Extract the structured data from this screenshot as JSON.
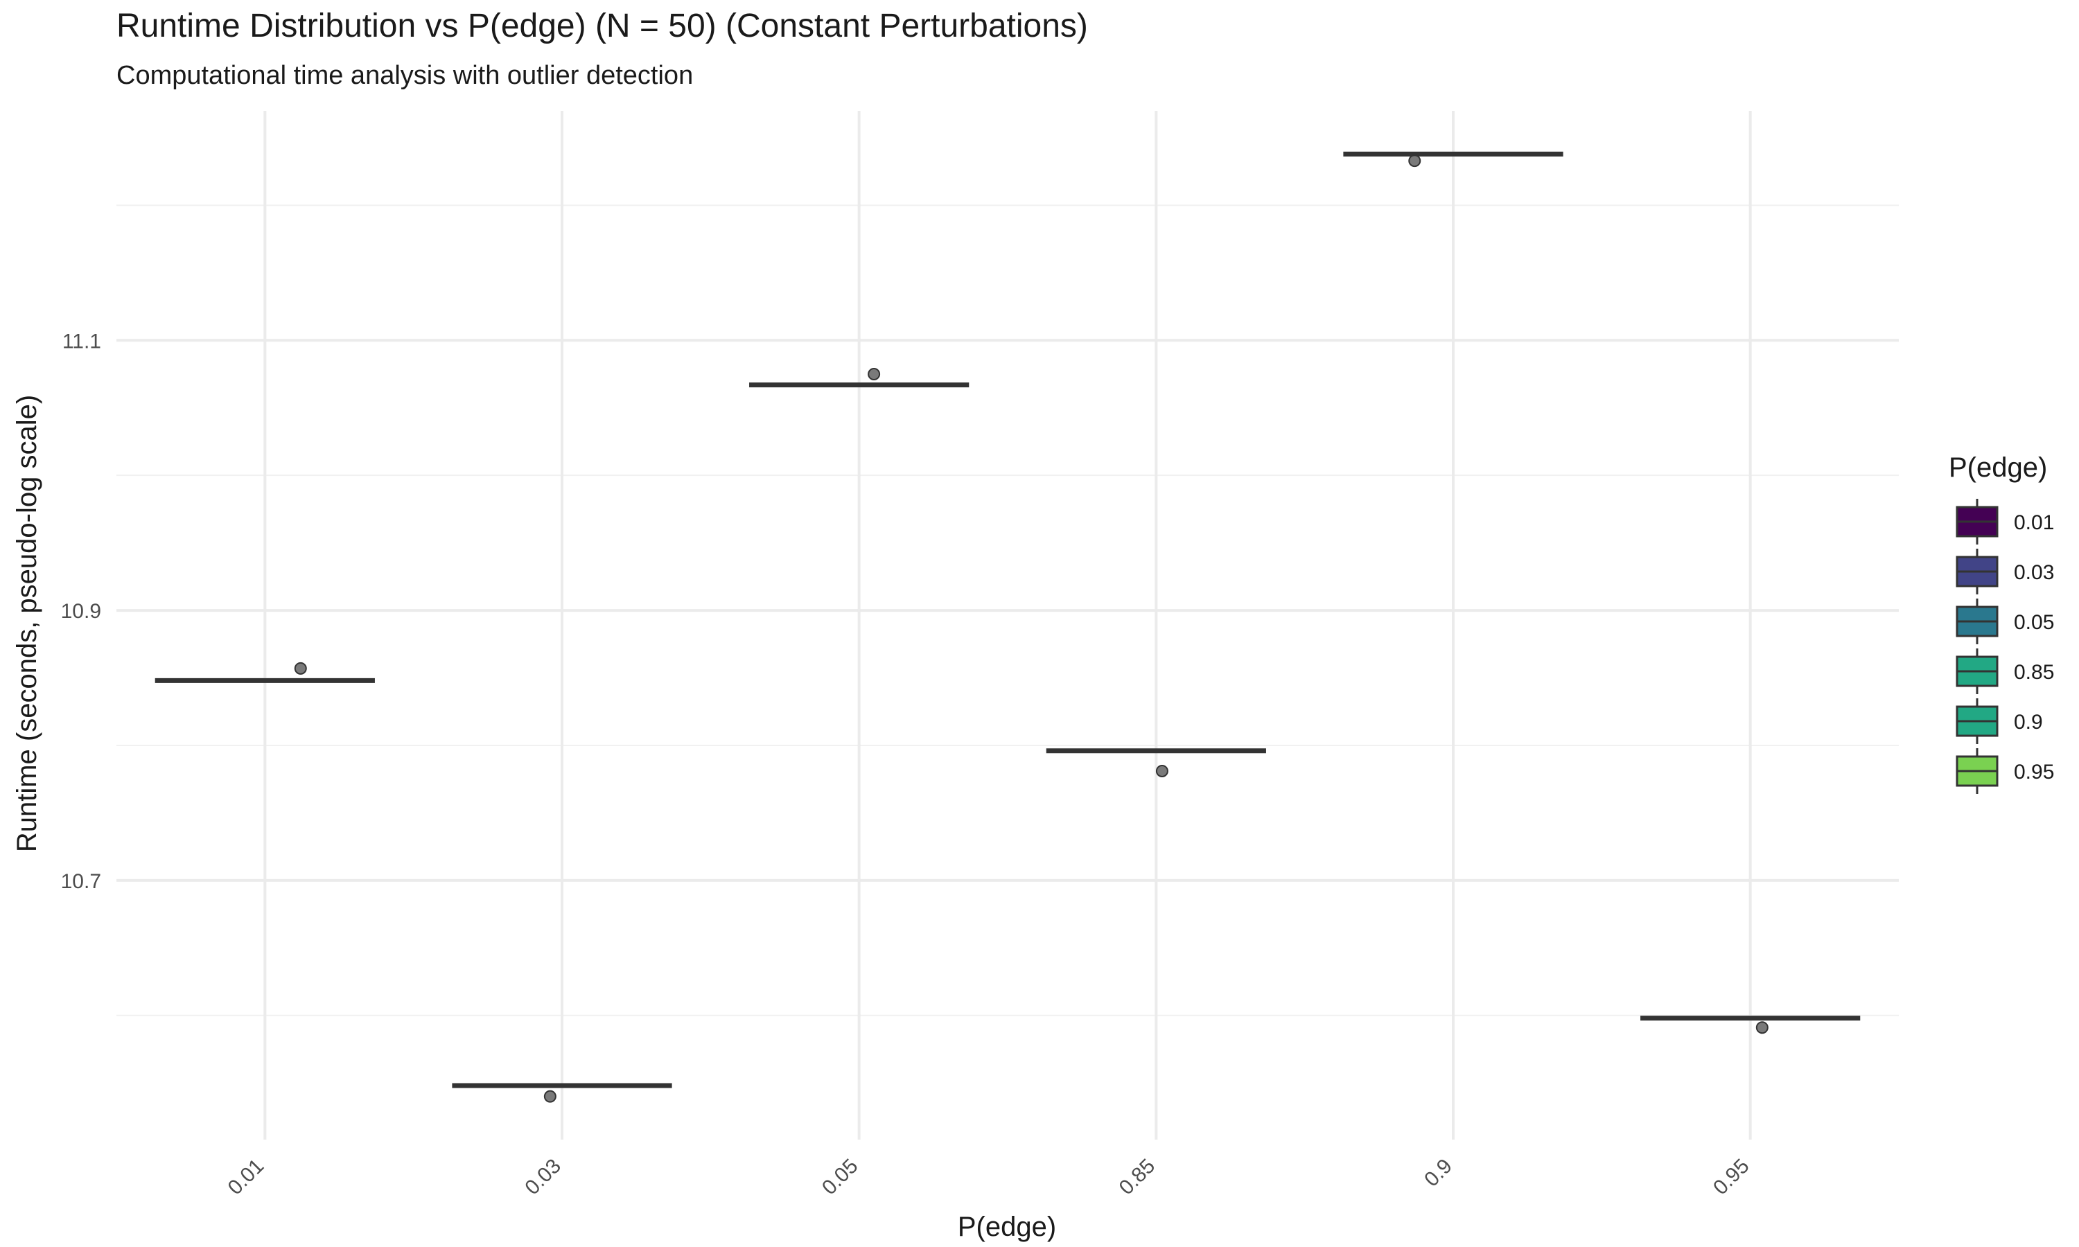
{
  "chart_data": {
    "type": "boxplot",
    "title": "Runtime Distribution vs P(edge) (N = 50) (Constant Perturbations)",
    "subtitle": "Computational time analysis with outlier detection",
    "xlabel": "P(edge)",
    "ylabel": "Runtime (seconds, pseudo-log scale)",
    "categories": [
      "0.01",
      "0.03",
      "0.05",
      "0.85",
      "0.9",
      "0.95"
    ],
    "medians": [
      10.848,
      10.548,
      11.067,
      10.796,
      11.238,
      10.598
    ],
    "points": [
      10.857,
      10.54,
      11.075,
      10.781,
      11.233,
      10.591
    ],
    "ylim": [
      10.508,
      11.27
    ],
    "yticks": [
      10.7,
      10.9,
      11.1
    ],
    "ytick_labels": [
      "10.7",
      "10.9",
      "11.1"
    ],
    "grid": true,
    "legend": {
      "title": "P(edge)",
      "position": "right",
      "entries": [
        "0.01",
        "0.03",
        "0.05",
        "0.85",
        "0.9",
        "0.95"
      ],
      "colors": [
        "#440154",
        "#414487",
        "#2A788E",
        "#22A884",
        "#22A884",
        "#7AD151"
      ]
    }
  }
}
